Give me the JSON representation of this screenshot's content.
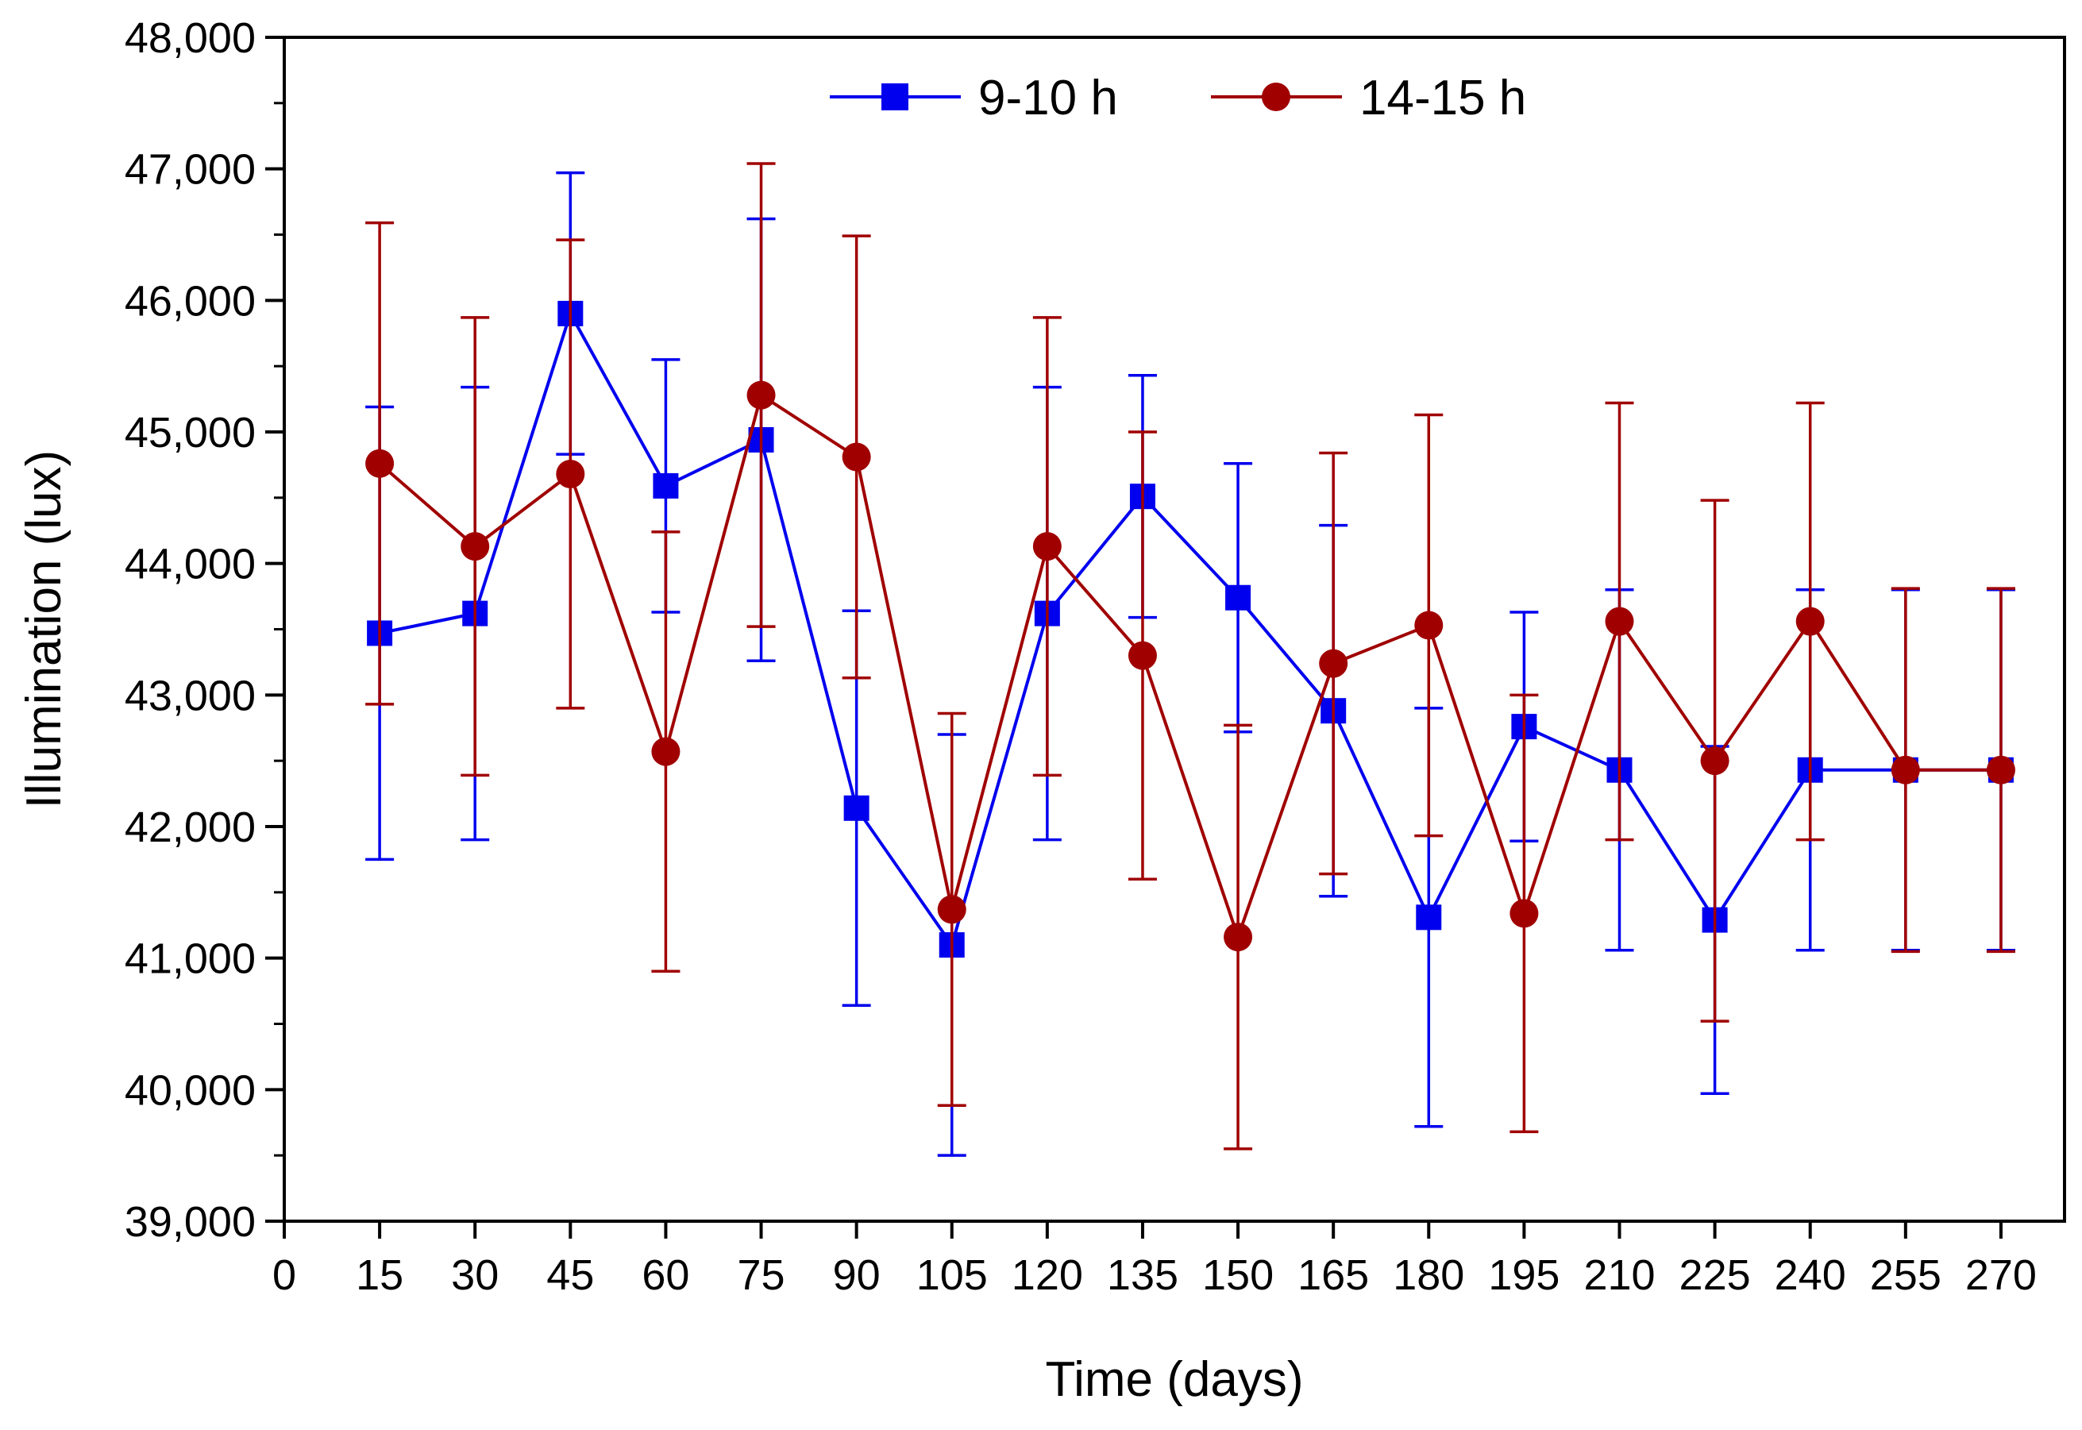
{
  "chart_data": {
    "type": "line",
    "title": "",
    "xlabel": "Time (days)",
    "ylabel": "Illumination (lux)",
    "xlim": [
      0,
      280
    ],
    "ylim": [
      39000,
      48000
    ],
    "x_ticks": [
      "0",
      "15",
      "30",
      "45",
      "60",
      "75",
      "90",
      "105",
      "120",
      "135",
      "150",
      "165",
      "180",
      "195",
      "210",
      "225",
      "240",
      "255",
      "270"
    ],
    "y_ticks": [
      "39,000",
      "40,000",
      "41,000",
      "42,000",
      "43,000",
      "44,000",
      "45,000",
      "46,000",
      "47,000",
      "48,000"
    ],
    "grid": false,
    "legend_position": "top-center",
    "x": [
      15,
      30,
      45,
      60,
      75,
      90,
      105,
      120,
      135,
      150,
      165,
      180,
      195,
      210,
      225,
      240,
      255,
      270
    ],
    "series": [
      {
        "name": "9-10 h",
        "color": "#0000ee",
        "marker": "square",
        "values": [
          43470,
          43620,
          45900,
          44590,
          44940,
          42140,
          41100,
          43620,
          44510,
          43740,
          42880,
          41310,
          42760,
          42430,
          41290,
          42430,
          42430,
          42430
        ],
        "error": [
          1720,
          1720,
          1070,
          960,
          1680,
          1500,
          1600,
          1720,
          920,
          1020,
          1410,
          1590,
          870,
          1370,
          1320,
          1370,
          1370,
          1370
        ]
      },
      {
        "name": "14-15 h",
        "color": "#a00000",
        "marker": "circle",
        "values": [
          44760,
          44130,
          44680,
          42570,
          45280,
          44810,
          41370,
          44130,
          43300,
          41160,
          43240,
          43530,
          41340,
          43560,
          42500,
          43560,
          42430,
          42430
        ],
        "error": [
          1830,
          1740,
          1780,
          1670,
          1760,
          1680,
          1490,
          1740,
          1700,
          1610,
          1600,
          1600,
          1660,
          1660,
          1980,
          1660,
          1380,
          1380
        ]
      }
    ]
  }
}
